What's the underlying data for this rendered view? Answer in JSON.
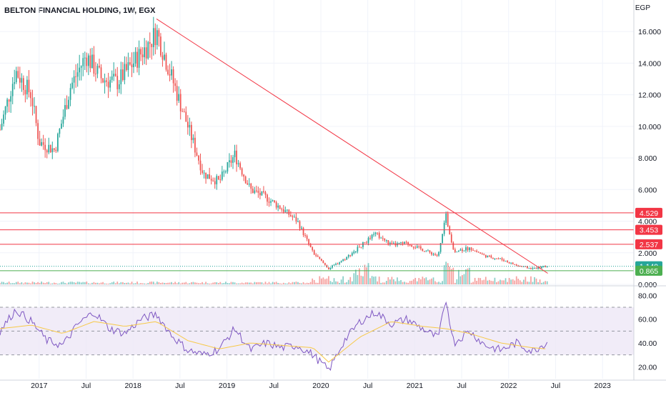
{
  "header": {
    "title": "BELTON FINANCIAL HOLDING, 1W, EGX",
    "currency": "EGP"
  },
  "colors": {
    "up": "#26a69a",
    "down": "#ef5350",
    "resistance": "#f23645",
    "support": "#4caf50",
    "trendline": "#f23645",
    "rsi": "#7e57c2",
    "rsi_ma": "#f7c948",
    "rsi_band": "#ede7f6",
    "price_tag": "#26a69a"
  },
  "chart_data": [
    {
      "type": "line",
      "kind": "candlestick",
      "price_axis_ticks": [
        "16.000",
        "14.000",
        "12.000",
        "10.000",
        "8.000",
        "6.000",
        "4.000",
        "2.000",
        "0.000"
      ],
      "ylim": [
        0,
        17
      ],
      "x_axis_labels": [
        "2017",
        "Jul",
        "2018",
        "Jul",
        "2019",
        "Jul",
        "2020",
        "Jul",
        "2021",
        "Jul",
        "2022",
        "Jul",
        "2023"
      ],
      "xlim": [
        "2016-08",
        "2023-05"
      ],
      "close_series": {
        "x": [
          "2016-08",
          "2016-10",
          "2016-12",
          "2017-01",
          "2017-03",
          "2017-05",
          "2017-07",
          "2017-09",
          "2017-11",
          "2018-01",
          "2018-03",
          "2018-04",
          "2018-06",
          "2018-08",
          "2018-10",
          "2018-12",
          "2019-02",
          "2019-04",
          "2019-06",
          "2019-08",
          "2019-10",
          "2019-12",
          "2020-02",
          "2020-04",
          "2020-06",
          "2020-08",
          "2020-10",
          "2020-12",
          "2021-02",
          "2021-04",
          "2021-05",
          "2021-06",
          "2021-08",
          "2021-10",
          "2021-12",
          "2022-02",
          "2022-04",
          "2022-06"
        ],
        "y": [
          9.8,
          13.5,
          12.0,
          9.0,
          8.5,
          12.5,
          14.5,
          13.0,
          12.8,
          14.0,
          15.2,
          16.0,
          13.0,
          10.0,
          7.0,
          6.5,
          8.2,
          6.0,
          5.5,
          4.8,
          4.0,
          2.0,
          1.0,
          1.6,
          2.4,
          3.2,
          2.5,
          2.6,
          2.2,
          1.8,
          4.3,
          2.1,
          2.3,
          1.8,
          1.6,
          1.2,
          1.0,
          1.149
        ]
      },
      "horizontal_levels": [
        {
          "value": "4.529",
          "role": "resistance"
        },
        {
          "value": "3.453",
          "role": "resistance"
        },
        {
          "value": "2.537",
          "role": "resistance"
        },
        {
          "value": "1.149",
          "role": "last"
        },
        {
          "value": "0.865",
          "role": "support"
        }
      ],
      "trendline": {
        "from": [
          "2018-04",
          16.8
        ],
        "to": [
          "2022-06",
          0.7
        ]
      },
      "volume_note": "volume bars along bottom, spike around 2021-05"
    },
    {
      "type": "line",
      "kind": "rsi",
      "ylim": [
        10,
        85
      ],
      "axis_ticks": [
        "80.00",
        "60.00",
        "40.00",
        "20.00"
      ],
      "band": [
        30,
        70
      ],
      "midline": 50,
      "series": [
        {
          "x": [
            "2016-08",
            "2016-10",
            "2016-12",
            "2017-02",
            "2017-04",
            "2017-06",
            "2017-08",
            "2017-10",
            "2017-12",
            "2018-02",
            "2018-04",
            "2018-06",
            "2018-08",
            "2018-10",
            "2018-12",
            "2019-02",
            "2019-04",
            "2019-06",
            "2019-08",
            "2019-10",
            "2019-12",
            "2020-02",
            "2020-04",
            "2020-06",
            "2020-08",
            "2020-10",
            "2020-12",
            "2021-02",
            "2021-04",
            "2021-05",
            "2021-06",
            "2021-08",
            "2021-10",
            "2021-12",
            "2022-02",
            "2022-04",
            "2022-06"
          ],
          "y": [
            50,
            68,
            58,
            42,
            38,
            56,
            66,
            52,
            48,
            60,
            64,
            46,
            34,
            30,
            35,
            52,
            34,
            40,
            36,
            38,
            30,
            17,
            42,
            58,
            66,
            56,
            60,
            52,
            44,
            76,
            40,
            50,
            38,
            34,
            40,
            33,
            41
          ]
        },
        {
          "x": [
            "2016-08",
            "2016-12",
            "2017-04",
            "2017-08",
            "2017-12",
            "2018-04",
            "2018-08",
            "2018-12",
            "2019-04",
            "2019-08",
            "2019-12",
            "2020-02",
            "2020-06",
            "2020-10",
            "2021-02",
            "2021-05",
            "2021-08",
            "2021-12",
            "2022-04",
            "2022-06"
          ],
          "y": [
            52,
            55,
            48,
            58,
            54,
            58,
            42,
            35,
            40,
            38,
            36,
            24,
            45,
            58,
            54,
            52,
            48,
            40,
            36,
            35
          ]
        }
      ]
    }
  ]
}
